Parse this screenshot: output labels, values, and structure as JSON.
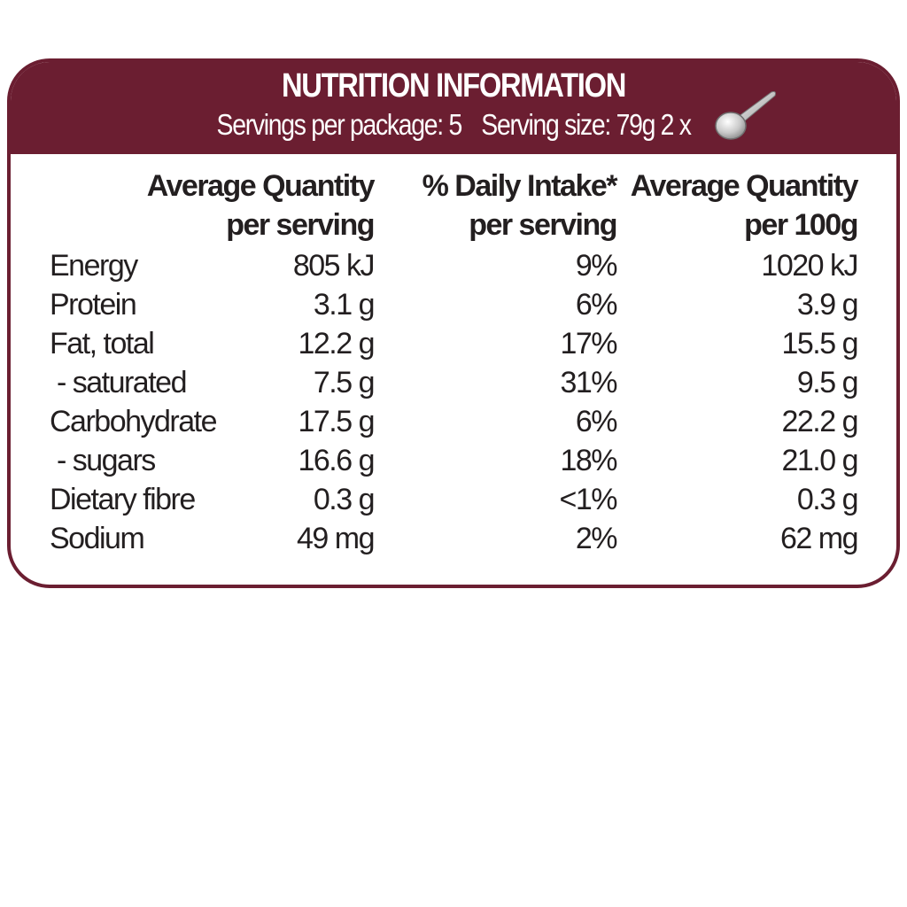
{
  "header": {
    "title": "NUTRITION INFORMATION",
    "servings_per_package": "Servings per package: 5",
    "serving_size": "Serving size:  79g  2 x"
  },
  "columns": [
    {
      "line1": "Average Quantity",
      "line2": "per serving"
    },
    {
      "line1": "% Daily Intake*",
      "line2": "per serving"
    },
    {
      "line1": "Average Quantity",
      "line2": "per 100g"
    }
  ],
  "rows": [
    {
      "name": "Energy",
      "per_serving": "805 kJ",
      "daily_intake": "9%",
      "per_100g": "1020 kJ"
    },
    {
      "name": "Protein",
      "per_serving": "3.1 g",
      "daily_intake": "6%",
      "per_100g": "3.9 g"
    },
    {
      "name": "Fat, total",
      "per_serving": "12.2 g",
      "daily_intake": "17%",
      "per_100g": "15.5 g"
    },
    {
      "name": " - saturated",
      "per_serving": "7.5 g",
      "daily_intake": "31%",
      "per_100g": "9.5 g"
    },
    {
      "name": "Carbohydrate",
      "per_serving": "17.5 g",
      "daily_intake": "6%",
      "per_100g": "22.2 g"
    },
    {
      "name": " - sugars",
      "per_serving": "16.6 g",
      "daily_intake": "18%",
      "per_100g": "21.0 g"
    },
    {
      "name": "Dietary fibre",
      "per_serving": "0.3 g",
      "daily_intake": "<1%",
      "per_100g": "0.3 g"
    },
    {
      "name": "Sodium",
      "per_serving": "49 mg",
      "daily_intake": "2%",
      "per_100g": "62 mg"
    }
  ],
  "icons": {
    "serving": "spoon-icon"
  },
  "colors": {
    "brand": "#6b1e31",
    "text": "#231f20"
  }
}
